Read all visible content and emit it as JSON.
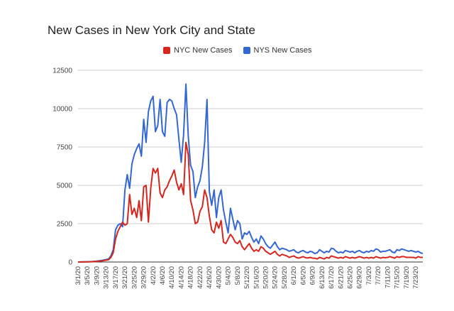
{
  "chart_data": {
    "type": "line",
    "title": "New Cases in New York City and State",
    "xlabel": "",
    "ylabel": "",
    "ylim": [
      0,
      12500
    ],
    "yticks": [
      0,
      2500,
      5000,
      7500,
      10000,
      12500
    ],
    "grid": true,
    "legend_position": "top-center",
    "categories": [
      "3/1/20",
      "3/5/20",
      "3/9/20",
      "3/13/20",
      "3/17/20",
      "3/21/20",
      "3/25/20",
      "3/29/20",
      "4/2/20",
      "4/6/20",
      "4/10/20",
      "4/14/20",
      "4/18/20",
      "4/22/20",
      "4/26/20",
      "4/30/20",
      "5/4/20",
      "5/8/20",
      "5/12/20",
      "5/16/20",
      "5/20/20",
      "5/24/20",
      "5/28/20",
      "6/1/20",
      "6/5/20",
      "6/9/20",
      "6/13/20",
      "6/17/20",
      "6/21/20",
      "6/25/20",
      "6/29/20",
      "7/3/20",
      "7/7/20",
      "7/11/20",
      "7/15/20",
      "7/19/20",
      "7/23/20"
    ],
    "series": [
      {
        "name": "NYC New Cases",
        "color": "#d7261e",
        "values": [
          [
            0,
            0
          ],
          [
            2,
            5
          ],
          [
            4,
            10
          ],
          [
            6,
            20
          ],
          [
            8,
            40
          ],
          [
            10,
            70
          ],
          [
            12,
            120
          ],
          [
            13,
            150
          ],
          [
            14,
            300
          ],
          [
            15,
            600
          ],
          [
            16,
            1500
          ],
          [
            17,
            2000
          ],
          [
            18,
            2300
          ],
          [
            19,
            2600
          ],
          [
            20,
            2400
          ],
          [
            21,
            2500
          ],
          [
            22,
            4400
          ],
          [
            23,
            3100
          ],
          [
            24,
            3500
          ],
          [
            25,
            2900
          ],
          [
            26,
            4000
          ],
          [
            27,
            2700
          ],
          [
            28,
            4900
          ],
          [
            29,
            5000
          ],
          [
            30,
            2600
          ],
          [
            31,
            4800
          ],
          [
            32,
            6100
          ],
          [
            33,
            5800
          ],
          [
            34,
            6100
          ],
          [
            35,
            4500
          ],
          [
            36,
            4200
          ],
          [
            37,
            4700
          ],
          [
            38,
            4900
          ],
          [
            39,
            5300
          ],
          [
            40,
            5600
          ],
          [
            41,
            6000
          ],
          [
            42,
            5200
          ],
          [
            43,
            4700
          ],
          [
            44,
            5100
          ],
          [
            45,
            4400
          ],
          [
            46,
            7800
          ],
          [
            47,
            7000
          ],
          [
            48,
            4000
          ],
          [
            49,
            3400
          ],
          [
            50,
            2500
          ],
          [
            51,
            2600
          ],
          [
            52,
            3300
          ],
          [
            53,
            3600
          ],
          [
            54,
            4700
          ],
          [
            55,
            4200
          ],
          [
            56,
            3000
          ],
          [
            57,
            2100
          ],
          [
            58,
            1900
          ],
          [
            59,
            2600
          ],
          [
            60,
            2200
          ],
          [
            61,
            2700
          ],
          [
            62,
            1300
          ],
          [
            63,
            1200
          ],
          [
            64,
            1500
          ],
          [
            65,
            1800
          ],
          [
            66,
            1600
          ],
          [
            67,
            1300
          ],
          [
            68,
            1200
          ],
          [
            69,
            1400
          ],
          [
            70,
            1000
          ],
          [
            71,
            800
          ],
          [
            72,
            1000
          ],
          [
            73,
            1200
          ],
          [
            74,
            900
          ],
          [
            75,
            700
          ],
          [
            76,
            800
          ],
          [
            77,
            700
          ],
          [
            78,
            1000
          ],
          [
            79,
            900
          ],
          [
            80,
            700
          ],
          [
            81,
            600
          ],
          [
            82,
            500
          ],
          [
            83,
            600
          ],
          [
            84,
            700
          ],
          [
            85,
            500
          ],
          [
            86,
            400
          ],
          [
            87,
            500
          ],
          [
            88,
            450
          ],
          [
            89,
            400
          ],
          [
            90,
            300
          ],
          [
            91,
            350
          ],
          [
            92,
            400
          ],
          [
            93,
            300
          ],
          [
            94,
            250
          ],
          [
            95,
            300
          ],
          [
            96,
            350
          ],
          [
            97,
            280
          ],
          [
            98,
            260
          ],
          [
            99,
            300
          ],
          [
            100,
            250
          ],
          [
            101,
            250
          ],
          [
            102,
            200
          ],
          [
            103,
            300
          ],
          [
            104,
            250
          ],
          [
            105,
            200
          ],
          [
            106,
            300
          ],
          [
            107,
            250
          ],
          [
            108,
            400
          ],
          [
            109,
            350
          ],
          [
            110,
            300
          ],
          [
            111,
            250
          ],
          [
            112,
            300
          ],
          [
            113,
            250
          ],
          [
            114,
            350
          ],
          [
            115,
            300
          ],
          [
            116,
            250
          ],
          [
            117,
            300
          ],
          [
            118,
            250
          ],
          [
            119,
            300
          ],
          [
            120,
            350
          ],
          [
            121,
            300
          ],
          [
            122,
            250
          ],
          [
            123,
            300
          ],
          [
            124,
            250
          ],
          [
            125,
            300
          ],
          [
            126,
            250
          ],
          [
            127,
            350
          ],
          [
            128,
            300
          ],
          [
            129,
            250
          ],
          [
            130,
            300
          ],
          [
            131,
            280
          ],
          [
            132,
            300
          ],
          [
            133,
            350
          ],
          [
            134,
            300
          ],
          [
            135,
            250
          ],
          [
            136,
            350
          ],
          [
            137,
            300
          ],
          [
            138,
            350
          ],
          [
            139,
            350
          ],
          [
            140,
            300
          ],
          [
            141,
            300
          ],
          [
            142,
            300
          ],
          [
            143,
            300
          ],
          [
            144,
            250
          ],
          [
            145,
            350
          ],
          [
            146,
            300
          ],
          [
            147,
            300
          ]
        ]
      },
      {
        "name": "NYS New Cases",
        "color": "#3367d6",
        "values": [
          [
            0,
            0
          ],
          [
            2,
            10
          ],
          [
            4,
            15
          ],
          [
            6,
            30
          ],
          [
            8,
            60
          ],
          [
            10,
            100
          ],
          [
            12,
            160
          ],
          [
            13,
            200
          ],
          [
            14,
            400
          ],
          [
            15,
            800
          ],
          [
            16,
            2100
          ],
          [
            17,
            2400
          ],
          [
            18,
            2500
          ],
          [
            19,
            2300
          ],
          [
            20,
            4700
          ],
          [
            21,
            5700
          ],
          [
            22,
            4800
          ],
          [
            23,
            6400
          ],
          [
            24,
            7000
          ],
          [
            25,
            7400
          ],
          [
            26,
            7700
          ],
          [
            27,
            6900
          ],
          [
            28,
            9300
          ],
          [
            29,
            7800
          ],
          [
            30,
            9800
          ],
          [
            31,
            10500
          ],
          [
            32,
            10800
          ],
          [
            33,
            8500
          ],
          [
            34,
            8900
          ],
          [
            35,
            10600
          ],
          [
            36,
            8500
          ],
          [
            37,
            8200
          ],
          [
            38,
            10400
          ],
          [
            39,
            10600
          ],
          [
            40,
            10500
          ],
          [
            41,
            10000
          ],
          [
            42,
            9600
          ],
          [
            43,
            8000
          ],
          [
            44,
            6500
          ],
          [
            45,
            8300
          ],
          [
            46,
            11600
          ],
          [
            47,
            8200
          ],
          [
            48,
            6300
          ],
          [
            49,
            5900
          ],
          [
            50,
            4200
          ],
          [
            51,
            4900
          ],
          [
            52,
            5300
          ],
          [
            53,
            6200
          ],
          [
            54,
            7800
          ],
          [
            55,
            10600
          ],
          [
            56,
            4600
          ],
          [
            57,
            3700
          ],
          [
            58,
            4700
          ],
          [
            59,
            2900
          ],
          [
            60,
            4200
          ],
          [
            61,
            4700
          ],
          [
            62,
            3400
          ],
          [
            63,
            2600
          ],
          [
            64,
            1900
          ],
          [
            65,
            3500
          ],
          [
            66,
            2800
          ],
          [
            67,
            2100
          ],
          [
            68,
            2700
          ],
          [
            69,
            2500
          ],
          [
            70,
            1500
          ],
          [
            71,
            1900
          ],
          [
            72,
            1800
          ],
          [
            73,
            2000
          ],
          [
            74,
            1600
          ],
          [
            75,
            1300
          ],
          [
            76,
            1500
          ],
          [
            77,
            1200
          ],
          [
            78,
            1700
          ],
          [
            79,
            1500
          ],
          [
            80,
            1200
          ],
          [
            81,
            1000
          ],
          [
            82,
            900
          ],
          [
            83,
            1100
          ],
          [
            84,
            1300
          ],
          [
            85,
            1000
          ],
          [
            86,
            800
          ],
          [
            87,
            900
          ],
          [
            88,
            850
          ],
          [
            89,
            800
          ],
          [
            90,
            700
          ],
          [
            91,
            750
          ],
          [
            92,
            800
          ],
          [
            93,
            650
          ],
          [
            94,
            600
          ],
          [
            95,
            700
          ],
          [
            96,
            750
          ],
          [
            97,
            650
          ],
          [
            98,
            600
          ],
          [
            99,
            700
          ],
          [
            100,
            650
          ],
          [
            101,
            550
          ],
          [
            102,
            600
          ],
          [
            103,
            800
          ],
          [
            104,
            700
          ],
          [
            105,
            600
          ],
          [
            106,
            700
          ],
          [
            107,
            650
          ],
          [
            108,
            900
          ],
          [
            109,
            850
          ],
          [
            110,
            700
          ],
          [
            111,
            600
          ],
          [
            112,
            650
          ],
          [
            113,
            600
          ],
          [
            114,
            750
          ],
          [
            115,
            700
          ],
          [
            116,
            650
          ],
          [
            117,
            700
          ],
          [
            118,
            600
          ],
          [
            119,
            700
          ],
          [
            120,
            750
          ],
          [
            121,
            650
          ],
          [
            122,
            600
          ],
          [
            123,
            700
          ],
          [
            124,
            650
          ],
          [
            125,
            750
          ],
          [
            126,
            700
          ],
          [
            127,
            850
          ],
          [
            128,
            800
          ],
          [
            129,
            650
          ],
          [
            130,
            700
          ],
          [
            131,
            700
          ],
          [
            132,
            750
          ],
          [
            133,
            800
          ],
          [
            134,
            650
          ],
          [
            135,
            600
          ],
          [
            136,
            800
          ],
          [
            137,
            750
          ],
          [
            138,
            850
          ],
          [
            139,
            800
          ],
          [
            140,
            750
          ],
          [
            141,
            700
          ],
          [
            142,
            750
          ],
          [
            143,
            700
          ],
          [
            144,
            650
          ],
          [
            145,
            700
          ],
          [
            146,
            600
          ],
          [
            147,
            550
          ]
        ]
      }
    ]
  }
}
